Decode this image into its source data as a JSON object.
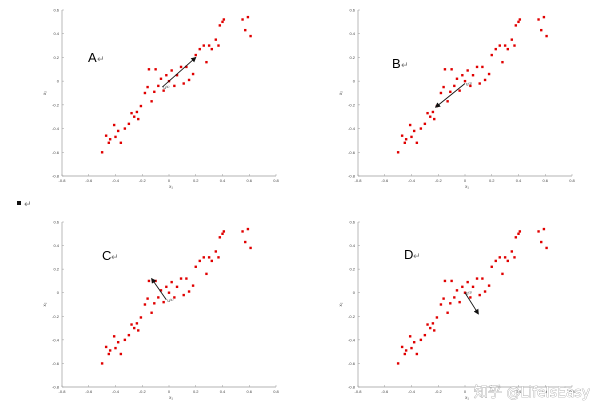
{
  "chart_data": [
    {
      "panel": "A",
      "type": "scatter",
      "xlabel": "x₁",
      "ylabel": "x₂",
      "xlim": [
        -0.8,
        0.8
      ],
      "ylim": [
        -0.8,
        0.6
      ],
      "xticks": [
        "-0.8",
        "-0.6",
        "-0.4",
        "-0.2",
        "0",
        "0.2",
        "0.4",
        "0.6",
        "0.8"
      ],
      "yticks": [
        "0.6",
        "0.4",
        "0.2",
        "0",
        "-0.2",
        "-0.4",
        "-0.6",
        "-0.8"
      ],
      "vector_label": "u⁽¹⁾",
      "vector": {
        "from": [
          -0.05,
          -0.05
        ],
        "to": [
          0.2,
          0.2
        ]
      }
    },
    {
      "panel": "B",
      "type": "scatter",
      "xlabel": "x₁",
      "ylabel": "x₂",
      "xlim": [
        -0.8,
        0.8
      ],
      "ylim": [
        -0.8,
        0.6
      ],
      "xticks": [
        "-0.8",
        "-0.6",
        "-0.4",
        "-0.2",
        "0",
        "0.2",
        "0.4",
        "0.6",
        "0.8"
      ],
      "yticks": [
        "0.6",
        "0.4",
        "0.2",
        "0",
        "-0.2",
        "-0.4",
        "-0.6",
        "-0.8"
      ],
      "vector_label": "u⁽¹⁾",
      "vector": {
        "from": [
          0.0,
          -0.02
        ],
        "to": [
          -0.22,
          -0.22
        ]
      }
    },
    {
      "panel": "C",
      "type": "scatter",
      "xlabel": "x₁",
      "ylabel": "x₂",
      "xlim": [
        -0.8,
        0.8
      ],
      "ylim": [
        -0.8,
        0.6
      ],
      "xticks": [
        "-0.8",
        "-0.6",
        "-0.4",
        "-0.2",
        "0",
        "0.2",
        "0.4",
        "0.6",
        "0.8"
      ],
      "yticks": [
        "0.6",
        "0.4",
        "0.2",
        "0",
        "-0.2",
        "-0.4",
        "-0.6",
        "-0.8"
      ],
      "vector_label": "u⁽¹⁾",
      "vector": {
        "from": [
          -0.02,
          -0.06
        ],
        "to": [
          -0.13,
          0.12
        ]
      }
    },
    {
      "panel": "D",
      "type": "scatter",
      "xlabel": "x₁",
      "ylabel": "x₂",
      "xlim": [
        -0.8,
        0.8
      ],
      "ylim": [
        -0.8,
        0.6
      ],
      "xticks": [
        "-0.8",
        "-0.6",
        "-0.4",
        "-0.2",
        "0",
        "0.2",
        "0.4",
        "0.6",
        "0.8"
      ],
      "yticks": [
        "0.6",
        "0.4",
        "0.2",
        "0",
        "-0.2",
        "-0.4",
        "-0.6",
        "-0.8"
      ],
      "vector_label": "u⁽¹⁾",
      "vector": {
        "from": [
          0.0,
          0.0
        ],
        "to": [
          0.1,
          -0.18
        ]
      }
    }
  ],
  "points": [
    [
      -0.5,
      -0.6
    ],
    [
      -0.47,
      -0.46
    ],
    [
      -0.44,
      -0.49
    ],
    [
      -0.45,
      -0.52
    ],
    [
      -0.41,
      -0.37
    ],
    [
      -0.4,
      -0.47
    ],
    [
      -0.38,
      -0.42
    ],
    [
      -0.36,
      -0.52
    ],
    [
      -0.33,
      -0.4
    ],
    [
      -0.3,
      -0.36
    ],
    [
      -0.28,
      -0.27
    ],
    [
      -0.26,
      -0.3
    ],
    [
      -0.24,
      -0.26
    ],
    [
      -0.23,
      -0.32
    ],
    [
      -0.21,
      -0.21
    ],
    [
      -0.18,
      -0.1
    ],
    [
      -0.16,
      -0.05
    ],
    [
      -0.15,
      0.1
    ],
    [
      -0.13,
      -0.17
    ],
    [
      -0.11,
      -0.09
    ],
    [
      -0.1,
      0.1
    ],
    [
      -0.08,
      -0.04
    ],
    [
      -0.06,
      0.02
    ],
    [
      -0.04,
      -0.08
    ],
    [
      -0.02,
      0.05
    ],
    [
      0.0,
      0.0
    ],
    [
      0.02,
      0.09
    ],
    [
      0.04,
      -0.04
    ],
    [
      0.06,
      0.05
    ],
    [
      0.09,
      0.12
    ],
    [
      0.11,
      -0.02
    ],
    [
      0.13,
      0.12
    ],
    [
      0.15,
      0.01
    ],
    [
      0.18,
      0.06
    ],
    [
      0.2,
      0.22
    ],
    [
      0.23,
      0.27
    ],
    [
      0.26,
      0.3
    ],
    [
      0.28,
      0.16
    ],
    [
      0.3,
      0.3
    ],
    [
      0.32,
      0.27
    ],
    [
      0.35,
      0.35
    ],
    [
      0.37,
      0.3
    ],
    [
      0.38,
      0.47
    ],
    [
      0.4,
      0.5
    ],
    [
      0.41,
      0.52
    ],
    [
      0.55,
      0.52
    ],
    [
      0.57,
      0.43
    ],
    [
      0.59,
      0.54
    ],
    [
      0.61,
      0.38
    ]
  ],
  "footer_mark": "↵",
  "watermark": "知乎 @LifeIsEasy",
  "colors": {
    "point": "#e00000",
    "axis": "#9a9a9a",
    "arrow": "#111111"
  }
}
